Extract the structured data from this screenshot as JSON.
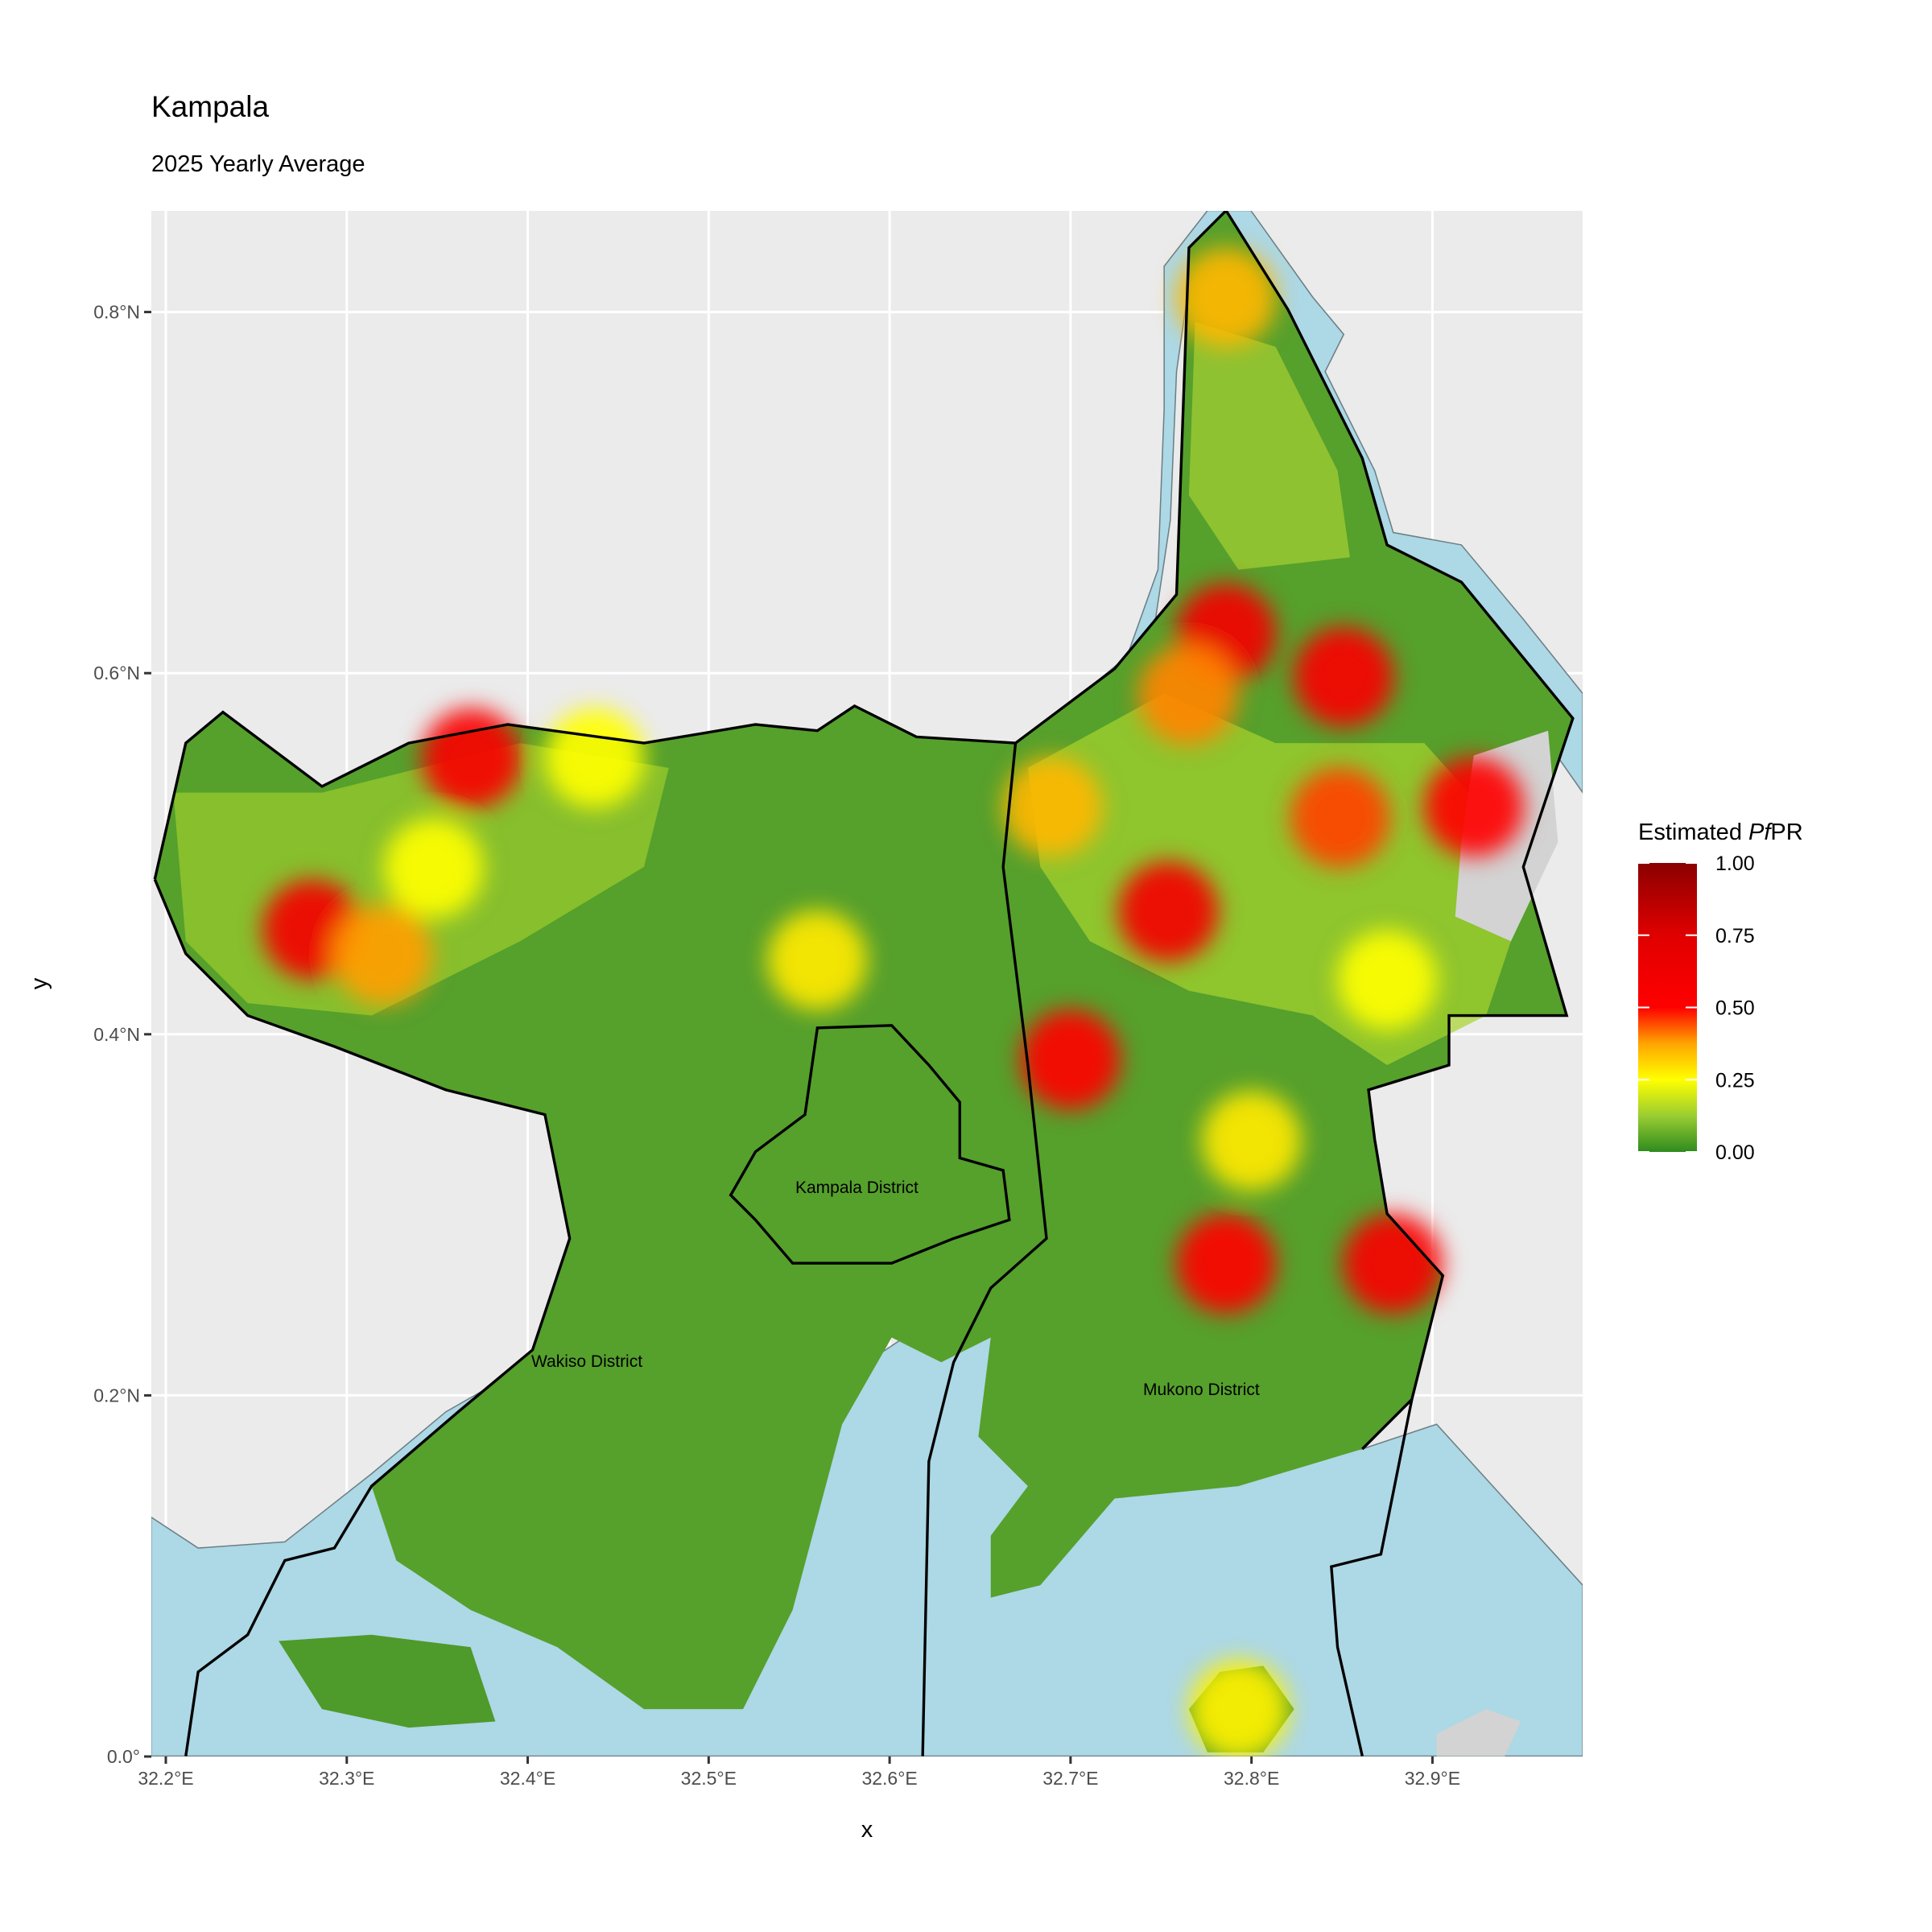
{
  "chart_data": {
    "type": "map",
    "title": "Kampala",
    "subtitle": "2025 Yearly Average",
    "x_label": "x",
    "y_label": "y",
    "xlim": [
      32.192,
      32.983
    ],
    "ylim": [
      0,
      0.856
    ],
    "xticks": [
      {
        "value": 32.2,
        "label": "32.2°E"
      },
      {
        "value": 32.3,
        "label": "32.3°E"
      },
      {
        "value": 32.4,
        "label": "32.4°E"
      },
      {
        "value": 32.5,
        "label": "32.5°E"
      },
      {
        "value": 32.6,
        "label": "32.6°E"
      },
      {
        "value": 32.7,
        "label": "32.7°E"
      },
      {
        "value": 32.8,
        "label": "32.8°E"
      },
      {
        "value": 32.9,
        "label": "32.9°E"
      }
    ],
    "yticks": [
      {
        "value": 0,
        "label": "0.0°"
      },
      {
        "value": 0.2,
        "label": "0.2°N"
      },
      {
        "value": 0.4,
        "label": "0.4°N"
      },
      {
        "value": 0.6,
        "label": "0.6°N"
      },
      {
        "value": 0.8,
        "label": "0.8°N"
      }
    ],
    "grid": true,
    "legend": {
      "title": {
        "prefix": "Estimated ",
        "italic": "Pf",
        "suffix": "PR"
      },
      "ticks": [
        {
          "value": 0,
          "label": "0.00"
        },
        0.25,
        {
          "value": 0.5,
          "label": "0.50"
        },
        0.75,
        {
          "value": 1,
          "label": "1.00"
        }
      ],
      "colorscale": [
        {
          "value": 0,
          "color": "#2e8b1e"
        },
        {
          "value": 0.125,
          "color": "#9acd32"
        },
        {
          "value": 0.25,
          "color": "#ffff00"
        },
        {
          "value": 0.375,
          "color": "#ffa500"
        },
        {
          "value": 0.5,
          "color": "#ff0000"
        },
        {
          "value": 0.75,
          "color": "#e00000"
        },
        {
          "value": 1,
          "color": "#8b0000"
        }
      ]
    },
    "district_labels": [
      "Kampala District",
      "Wakiso District",
      "Mukono District"
    ],
    "hotspots": {
      "lon": [
        32.281,
        32.369,
        32.32,
        32.56,
        32.754,
        32.786,
        32.851,
        32.765,
        32.849,
        32.786,
        32.878,
        32.786,
        32.7,
        32.69,
        32.875,
        32.8,
        32.793,
        32.348,
        32.437,
        32.923
      ],
      "lat": [
        0.458,
        0.553,
        0.444,
        0.441,
        0.468,
        0.622,
        0.598,
        0.588,
        0.52,
        0.808,
        0.273,
        0.273,
        0.386,
        0.526,
        0.43,
        0.341,
        0.026,
        0.492,
        0.553,
        0.526
      ],
      "values": [
        0.6,
        0.55,
        0.38,
        0.28,
        0.6,
        0.6,
        0.55,
        0.4,
        0.45,
        0.35,
        0.55,
        0.5,
        0.5,
        0.35,
        0.25,
        0.28,
        0.27,
        0.25,
        0.25,
        0.5
      ]
    }
  }
}
